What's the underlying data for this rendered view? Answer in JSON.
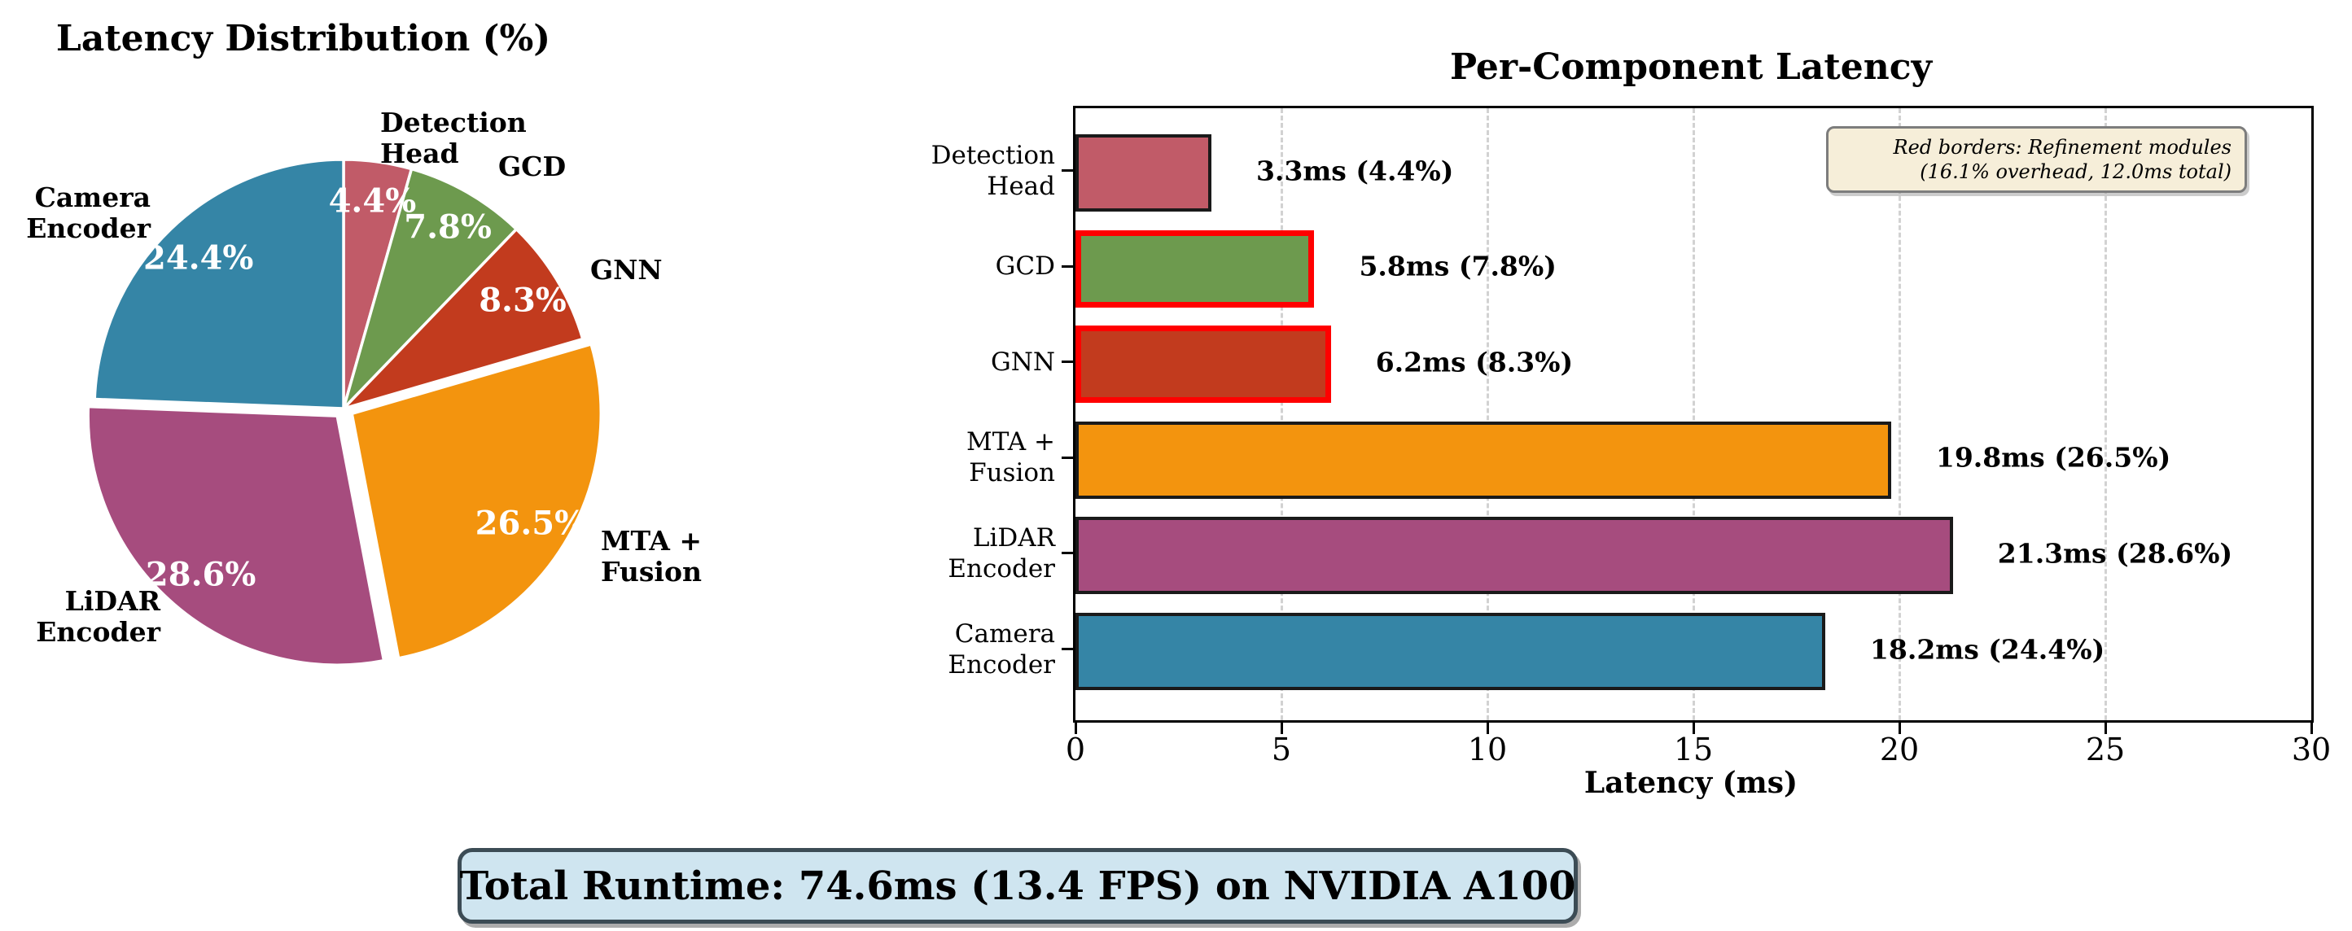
{
  "footer": {
    "text": "Total Runtime: 74.6ms (13.4 FPS) on NVIDIA A100"
  },
  "chart_data": [
    {
      "type": "pie",
      "title": "Latency Distribution (%)",
      "start_angle": "top",
      "direction": "clockwise",
      "slices": [
        {
          "label": "Detection Head",
          "value": 4.4,
          "pct_text": "4.4%",
          "color": "#c15b68",
          "exploded": false
        },
        {
          "label": "GCD",
          "value": 7.8,
          "pct_text": "7.8%",
          "color": "#6d9a4e",
          "exploded": false
        },
        {
          "label": "GNN",
          "value": 8.3,
          "pct_text": "8.3%",
          "color": "#c23b1e",
          "exploded": false
        },
        {
          "label": "MTA + Fusion",
          "value": 26.5,
          "pct_text": "26.5%",
          "color": "#f3940e",
          "exploded": true
        },
        {
          "label": "LiDAR Encoder",
          "value": 28.6,
          "pct_text": "28.6%",
          "color": "#a64c7e",
          "exploded": true
        },
        {
          "label": "Camera Encoder",
          "value": 24.4,
          "pct_text": "24.4%",
          "color": "#3585a6",
          "exploded": false
        }
      ],
      "outer_labels": [
        {
          "name": "detection-head",
          "lines": [
            "Detection",
            "Head"
          ],
          "x": 467,
          "y": 170,
          "align": "left"
        },
        {
          "name": "gcd",
          "lines": [
            "GCD"
          ],
          "x": 612,
          "y": 205,
          "align": "left"
        },
        {
          "name": "gnn",
          "lines": [
            "GNN"
          ],
          "x": 725,
          "y": 332,
          "align": "left"
        },
        {
          "name": "mta-fusion",
          "lines": [
            "MTA +",
            "Fusion"
          ],
          "x": 738,
          "y": 684,
          "align": "left"
        },
        {
          "name": "lidar-encoder",
          "lines": [
            "LiDAR",
            "Encoder"
          ],
          "x": 197,
          "y": 758,
          "align": "right"
        },
        {
          "name": "camera-encoder",
          "lines": [
            "Camera",
            "Encoder"
          ],
          "x": 185,
          "y": 262,
          "align": "right"
        }
      ]
    },
    {
      "type": "bar",
      "orientation": "horizontal",
      "title": "Per-Component Latency",
      "xlabel": "Latency (ms)",
      "xlim": [
        0,
        30
      ],
      "xticks": [
        0,
        5,
        10,
        15,
        20,
        25,
        30
      ],
      "grid": "vertical-dashed",
      "legend_position": "none",
      "categories": [
        "Detection Head",
        "GCD",
        "GNN",
        "MTA + Fusion",
        "LiDAR Encoder",
        "Camera Encoder"
      ],
      "category_lines": [
        [
          "Detection",
          "Head"
        ],
        [
          "GCD"
        ],
        [
          "GNN"
        ],
        [
          "MTA +",
          "Fusion"
        ],
        [
          "LiDAR",
          "Encoder"
        ],
        [
          "Camera",
          "Encoder"
        ]
      ],
      "values": [
        3.3,
        5.8,
        6.2,
        19.8,
        21.3,
        18.2
      ],
      "percents": [
        4.4,
        7.8,
        8.3,
        26.5,
        28.6,
        24.4
      ],
      "bar_labels": [
        "3.3ms (4.4%)",
        "5.8ms (7.8%)",
        "6.2ms (8.3%)",
        "19.8ms (26.5%)",
        "21.3ms (28.6%)",
        "18.2ms (24.4%)"
      ],
      "colors": [
        "#c15b68",
        "#6d9a4e",
        "#c23b1e",
        "#f3940e",
        "#a64c7e",
        "#3585a6"
      ],
      "border_colors": [
        "#1a1a1a",
        "#ff0000",
        "#ff0000",
        "#1a1a1a",
        "#1a1a1a",
        "#1a1a1a"
      ],
      "annotation": {
        "lines": [
          "Red borders: Refinement modules",
          "(16.1% overhead, 12.0ms total)"
        ],
        "bg_color": "#f6eed9",
        "border_color": "#7d7d7d"
      }
    }
  ],
  "status_colors": {
    "refinement_border": "#ff0000",
    "runtime_box_bg": "#cfe5f0",
    "runtime_box_border": "#3c4c55"
  }
}
